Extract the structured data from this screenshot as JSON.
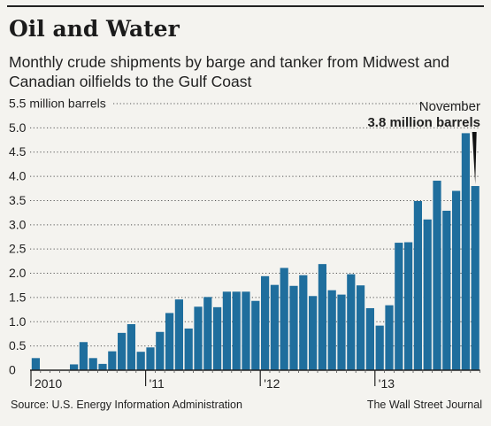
{
  "header": {
    "title": "Oil and Water",
    "subtitle": "Monthly crude shipments by barge and tanker from Midwest and Canadian oilfields to the Gulf Coast"
  },
  "footer": {
    "source": "Source: U.S. Energy Information Administration",
    "credit": "The Wall Street Journal"
  },
  "colors": {
    "bar": "#1f6e9d",
    "text": "#222222",
    "grid": "#555555",
    "background": "#f4f3ef"
  },
  "chart_data": {
    "type": "bar",
    "title": "Oil and Water",
    "subtitle": "Monthly crude shipments by barge and tanker from Midwest and Canadian oilfields to the Gulf Coast",
    "ylabel": "million barrels",
    "ylim": [
      0,
      5.5
    ],
    "y_ticks": [
      {
        "value": 0,
        "label": "0"
      },
      {
        "value": 0.5,
        "label": "0.5"
      },
      {
        "value": 1.0,
        "label": "1.0"
      },
      {
        "value": 1.5,
        "label": "1.5"
      },
      {
        "value": 2.0,
        "label": "2.0"
      },
      {
        "value": 2.5,
        "label": "2.5"
      },
      {
        "value": 3.0,
        "label": "3.0"
      },
      {
        "value": 3.5,
        "label": "3.5"
      },
      {
        "value": 4.0,
        "label": "4.0"
      },
      {
        "value": 4.5,
        "label": "4.5"
      },
      {
        "value": 5.0,
        "label": "5.0"
      },
      {
        "value": 5.5,
        "label": "5.5 million barrels"
      }
    ],
    "grid": true,
    "x_year_labels": [
      {
        "month_index": 0,
        "label": "2010"
      },
      {
        "month_index": 12,
        "label": "'11"
      },
      {
        "month_index": 24,
        "label": "'12"
      },
      {
        "month_index": 36,
        "label": "'13"
      }
    ],
    "months": [
      "2010-01",
      "2010-02",
      "2010-03",
      "2010-04",
      "2010-05",
      "2010-06",
      "2010-07",
      "2010-08",
      "2010-09",
      "2010-10",
      "2010-11",
      "2010-12",
      "2011-01",
      "2011-02",
      "2011-03",
      "2011-04",
      "2011-05",
      "2011-06",
      "2011-07",
      "2011-08",
      "2011-09",
      "2011-10",
      "2011-11",
      "2011-12",
      "2012-01",
      "2012-02",
      "2012-03",
      "2012-04",
      "2012-05",
      "2012-06",
      "2012-07",
      "2012-08",
      "2012-09",
      "2012-10",
      "2012-11",
      "2012-12",
      "2013-01",
      "2013-02",
      "2013-03",
      "2013-04",
      "2013-05",
      "2013-06",
      "2013-07",
      "2013-08",
      "2013-09",
      "2013-10",
      "2013-11"
    ],
    "values": [
      0.25,
      0,
      0,
      0,
      0.12,
      0.58,
      0.25,
      0.13,
      0.39,
      0.77,
      0.95,
      0.38,
      0.47,
      0.79,
      1.18,
      1.46,
      0.86,
      1.31,
      1.51,
      1.3,
      1.62,
      1.62,
      1.62,
      1.43,
      1.94,
      1.76,
      2.11,
      1.74,
      1.96,
      1.53,
      2.19,
      1.65,
      1.56,
      1.98,
      1.75,
      1.28,
      0.92,
      1.34,
      2.63,
      2.64,
      3.49,
      3.11,
      3.91,
      3.29,
      3.7,
      4.89,
      3.8
    ],
    "annotation": {
      "month_index": 46,
      "label": "November",
      "value_label": "3.8 million barrels"
    }
  }
}
